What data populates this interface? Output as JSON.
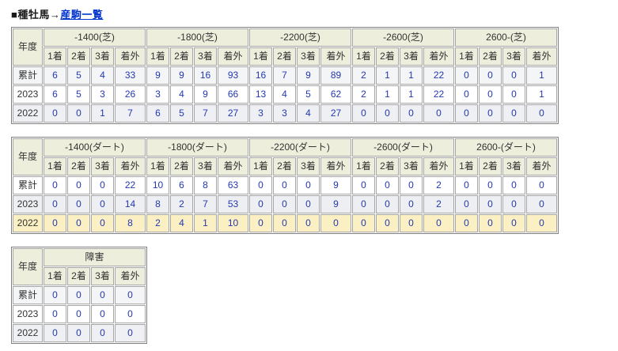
{
  "title": {
    "prefix": "■種牡馬→",
    "link_text": "産駒一覧"
  },
  "year_header": "年度",
  "place_headers": [
    "1着",
    "2着",
    "3着",
    "着外"
  ],
  "row_labels": [
    "累計",
    "2023",
    "2022"
  ],
  "colors": {
    "header_bg": "#eeeedd",
    "outer_border": "#808080",
    "cell_border": "#a6a6a6",
    "value_color": "#2438b0",
    "label_color": "#333333",
    "link_color": "#0033cc",
    "highlight_row_bg": "#faf0c3",
    "stripe_gray": "#eef0f4"
  },
  "tables": [
    {
      "id": "turf",
      "groups": [
        "-1400(芝)",
        "-1800(芝)",
        "-2200(芝)",
        "-2600(芝)",
        "2600-(芝)"
      ],
      "rows": [
        {
          "label": "累計",
          "bg": "#f4f5f7",
          "values": [
            6,
            5,
            4,
            33,
            9,
            9,
            16,
            93,
            16,
            7,
            9,
            89,
            2,
            1,
            1,
            22,
            0,
            0,
            0,
            1
          ]
        },
        {
          "label": "2023",
          "bg": "#ffffff",
          "values": [
            6,
            5,
            3,
            26,
            3,
            4,
            9,
            66,
            13,
            4,
            5,
            62,
            2,
            1,
            1,
            22,
            0,
            0,
            0,
            1
          ]
        },
        {
          "label": "2022",
          "bg": "#eef0f4",
          "values": [
            0,
            0,
            1,
            7,
            6,
            5,
            7,
            27,
            3,
            3,
            4,
            27,
            0,
            0,
            0,
            0,
            0,
            0,
            0,
            0
          ]
        }
      ]
    },
    {
      "id": "dirt",
      "groups": [
        "-1400(ダート)",
        "-1800(ダート)",
        "-2200(ダート)",
        "-2600(ダート)",
        "2600-(ダート)"
      ],
      "rows": [
        {
          "label": "累計",
          "bg": "#ffffff",
          "values": [
            0,
            0,
            0,
            22,
            10,
            6,
            8,
            63,
            0,
            0,
            0,
            9,
            0,
            0,
            0,
            2,
            0,
            0,
            0,
            0
          ]
        },
        {
          "label": "2023",
          "bg": "#eeeff2",
          "values": [
            0,
            0,
            0,
            14,
            8,
            2,
            7,
            53,
            0,
            0,
            0,
            9,
            0,
            0,
            0,
            2,
            0,
            0,
            0,
            0
          ]
        },
        {
          "label": "2022",
          "bg": "#faf0c3",
          "values": [
            0,
            0,
            0,
            8,
            2,
            4,
            1,
            10,
            0,
            0,
            0,
            0,
            0,
            0,
            0,
            0,
            0,
            0,
            0,
            0
          ]
        }
      ]
    },
    {
      "id": "jump",
      "groups": [
        "障害"
      ],
      "rows": [
        {
          "label": "累計",
          "bg": "#f4f5f7",
          "values": [
            0,
            0,
            0,
            0
          ]
        },
        {
          "label": "2023",
          "bg": "#ffffff",
          "values": [
            0,
            0,
            0,
            0
          ]
        },
        {
          "label": "2022",
          "bg": "#eef0f4",
          "values": [
            0,
            0,
            0,
            0
          ]
        }
      ]
    }
  ]
}
